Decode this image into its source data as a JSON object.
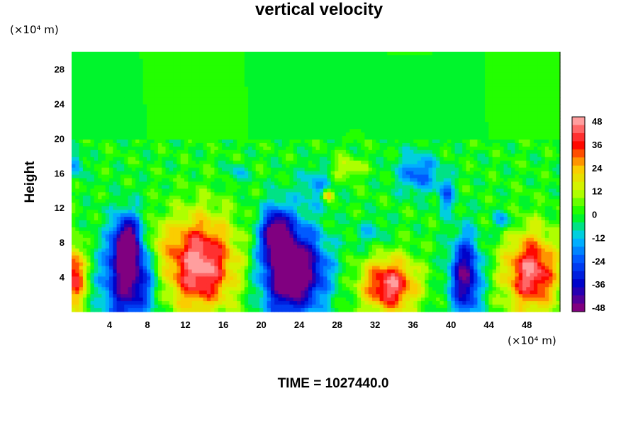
{
  "chart_data": {
    "type": "heatmap",
    "title": "vertical velocity",
    "ylabel": "Height",
    "xlabel": "",
    "x_unit": "(×10⁴ m)",
    "y_unit": "(×10⁴ m)",
    "footer": "TIME = 1027440.0",
    "xlim": [
      0,
      51.5
    ],
    "ylim": [
      0,
      30
    ],
    "x_ticks": [
      4,
      8,
      12,
      16,
      20,
      24,
      28,
      32,
      36,
      40,
      44,
      48
    ],
    "y_ticks": [
      4,
      8,
      12,
      16,
      20,
      24,
      28
    ],
    "colorbar": {
      "min": -48,
      "max": 48,
      "ticks": [
        48,
        36,
        24,
        12,
        0,
        -12,
        -24,
        -36,
        -48
      ],
      "colors": [
        "#800080",
        "#0000c8",
        "#0050ff",
        "#00c8ff",
        "#00ff00",
        "#c8ff00",
        "#ffc800",
        "#ff0000",
        "#ff9e9e"
      ]
    },
    "background_value": 0,
    "features": [
      {
        "x": 6.0,
        "y": 4.0,
        "sx": 1.8,
        "sy": 3.8,
        "value": -48
      },
      {
        "x": 5.8,
        "y": 8.0,
        "sx": 0.8,
        "sy": 2.0,
        "value": -40
      },
      {
        "x": 13.5,
        "y": 5.5,
        "sx": 2.6,
        "sy": 3.8,
        "value": 48
      },
      {
        "x": 22.5,
        "y": 5.0,
        "sx": 1.8,
        "sy": 4.0,
        "value": -48
      },
      {
        "x": 21.5,
        "y": 9.0,
        "sx": 0.9,
        "sy": 1.8,
        "value": -40
      },
      {
        "x": 25.0,
        "y": 4.5,
        "sx": 1.8,
        "sy": 3.0,
        "value": -28
      },
      {
        "x": 33.5,
        "y": 3.0,
        "sx": 2.0,
        "sy": 2.2,
        "value": 44
      },
      {
        "x": 41.5,
        "y": 4.0,
        "sx": 1.1,
        "sy": 3.2,
        "value": -44
      },
      {
        "x": 48.5,
        "y": 4.5,
        "sx": 2.0,
        "sy": 3.2,
        "value": 44
      },
      {
        "x": 0.3,
        "y": 4.0,
        "sx": 0.8,
        "sy": 2.5,
        "value": 40
      },
      {
        "x": 36.5,
        "y": 16.0,
        "sx": 1.5,
        "sy": 1.6,
        "value": -22
      },
      {
        "x": 39.5,
        "y": 13.5,
        "sx": 0.6,
        "sy": 1.4,
        "value": -20
      },
      {
        "x": 26.0,
        "y": 14.5,
        "sx": 1.2,
        "sy": 1.6,
        "value": -14
      },
      {
        "x": 27.0,
        "y": 13.5,
        "sx": 0.4,
        "sy": 0.5,
        "value": 30
      },
      {
        "x": 17.5,
        "y": 16.0,
        "sx": 0.7,
        "sy": 0.8,
        "value": -12
      },
      {
        "x": 0.5,
        "y": 17.0,
        "sx": 0.5,
        "sy": 1.0,
        "value": -18
      },
      {
        "x": 29.0,
        "y": 16.5,
        "sx": 1.2,
        "sy": 0.9,
        "value": 14
      },
      {
        "x": 45.5,
        "y": 10.5,
        "sx": 0.7,
        "sy": 0.8,
        "value": -16
      },
      {
        "x": 9.0,
        "y": 8.0,
        "sx": 1.0,
        "sy": 1.8,
        "value": 12
      },
      {
        "x": 31.5,
        "y": 9.0,
        "sx": 1.2,
        "sy": 1.2,
        "value": -10
      }
    ]
  }
}
